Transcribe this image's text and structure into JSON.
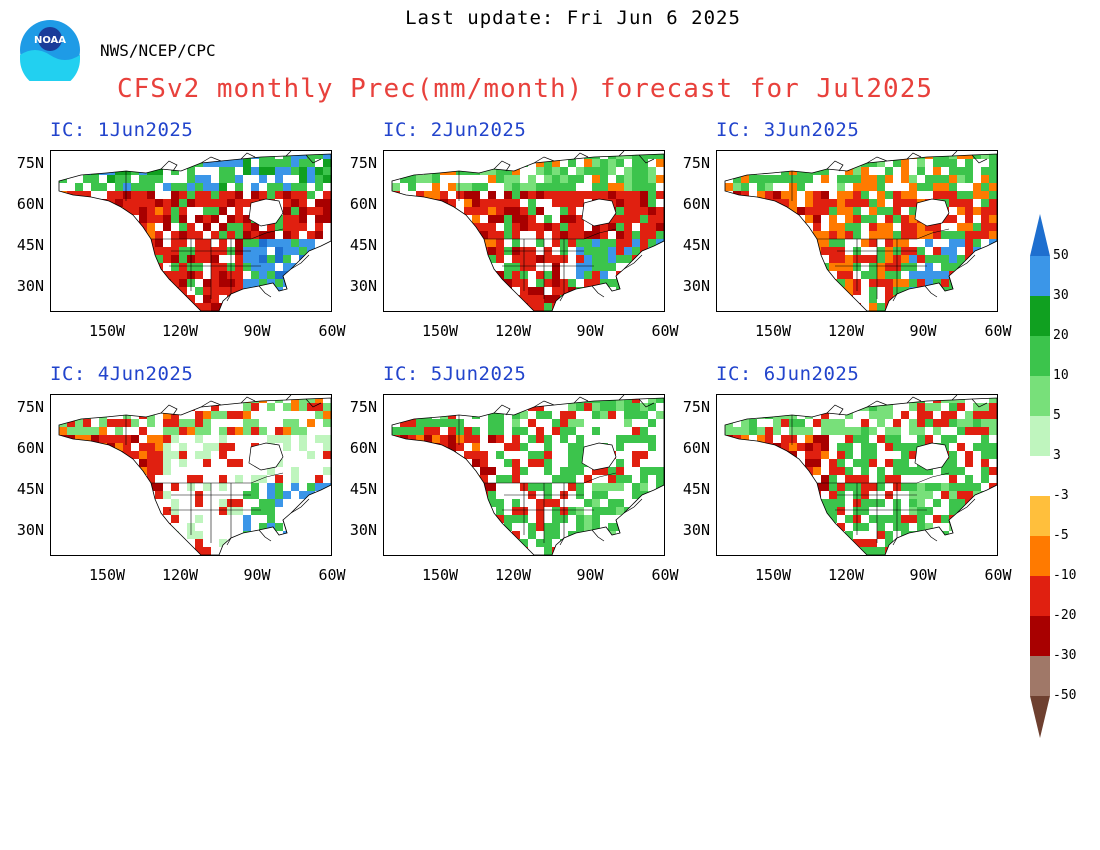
{
  "header": {
    "last_update": "Last update: Fri Jun 6 2025",
    "agency": "NWS/NCEP/CPC",
    "title": "CFSv2 monthly Prec(mm/month) forecast for Jul2025",
    "logo_text": "NOAA"
  },
  "axes": {
    "lat_labels": [
      "75N",
      "60N",
      "45N",
      "30N"
    ],
    "lon_labels": [
      "150W",
      "120W",
      "90W",
      "60W"
    ]
  },
  "panels": [
    {
      "title": "IC: 1Jun2025"
    },
    {
      "title": "IC: 2Jun2025"
    },
    {
      "title": "IC: 3Jun2025"
    },
    {
      "title": "IC: 4Jun2025"
    },
    {
      "title": "IC: 5Jun2025"
    },
    {
      "title": "IC: 6Jun2025"
    }
  ],
  "colorbar": {
    "labels": [
      "50",
      "30",
      "20",
      "10",
      "5",
      "3",
      "-3",
      "-5",
      "-10",
      "-20",
      "-30",
      "-50"
    ],
    "colors": [
      "#1e6fcf",
      "#3b96e8",
      "#10a020",
      "#3cc44c",
      "#78e07a",
      "#bff5be",
      "#ffffff",
      "#ffbf3c",
      "#ff7a00",
      "#e02010",
      "#a80000",
      "#a07868",
      "#6e4030"
    ]
  }
}
